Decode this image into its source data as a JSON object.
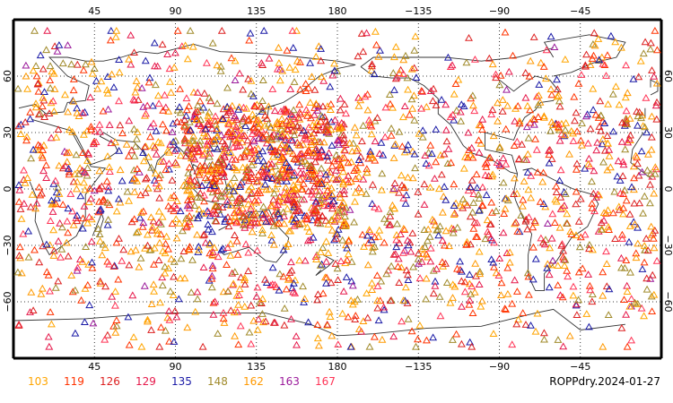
{
  "map": {
    "projection": "equirectangular",
    "lon_center": 180,
    "lon_range": [
      0,
      360
    ],
    "lat_range": [
      -90,
      90
    ],
    "grid": "dotted",
    "grid_lon_step": 45,
    "grid_lat_step": 30
  },
  "axes": {
    "lon_ticks": [
      "45",
      "90",
      "135",
      "180",
      "−135",
      "−90",
      "−45"
    ],
    "lat_ticks_left": [
      "60",
      "30",
      "0",
      "−30",
      "−60"
    ],
    "lat_ticks_right": [
      "60",
      "30",
      "0",
      "−30",
      "−60"
    ]
  },
  "legend": {
    "placement": "bottom-left",
    "items": [
      {
        "label": "103",
        "color": "#ffa500"
      },
      {
        "label": "119",
        "color": "#ff3300"
      },
      {
        "label": "126",
        "color": "#dd2020"
      },
      {
        "label": "129",
        "color": "#e6194b"
      },
      {
        "label": "135",
        "color": "#1a1aa6"
      },
      {
        "label": "148",
        "color": "#a08a2a"
      },
      {
        "label": "162",
        "color": "#ff9900"
      },
      {
        "label": "163",
        "color": "#9b1a9b"
      },
      {
        "label": "167",
        "color": "#ff3355"
      }
    ]
  },
  "footer": {
    "label": "ROPPdry.2024-01-27"
  },
  "symbol": "triangle",
  "observation_density_note": ""
}
